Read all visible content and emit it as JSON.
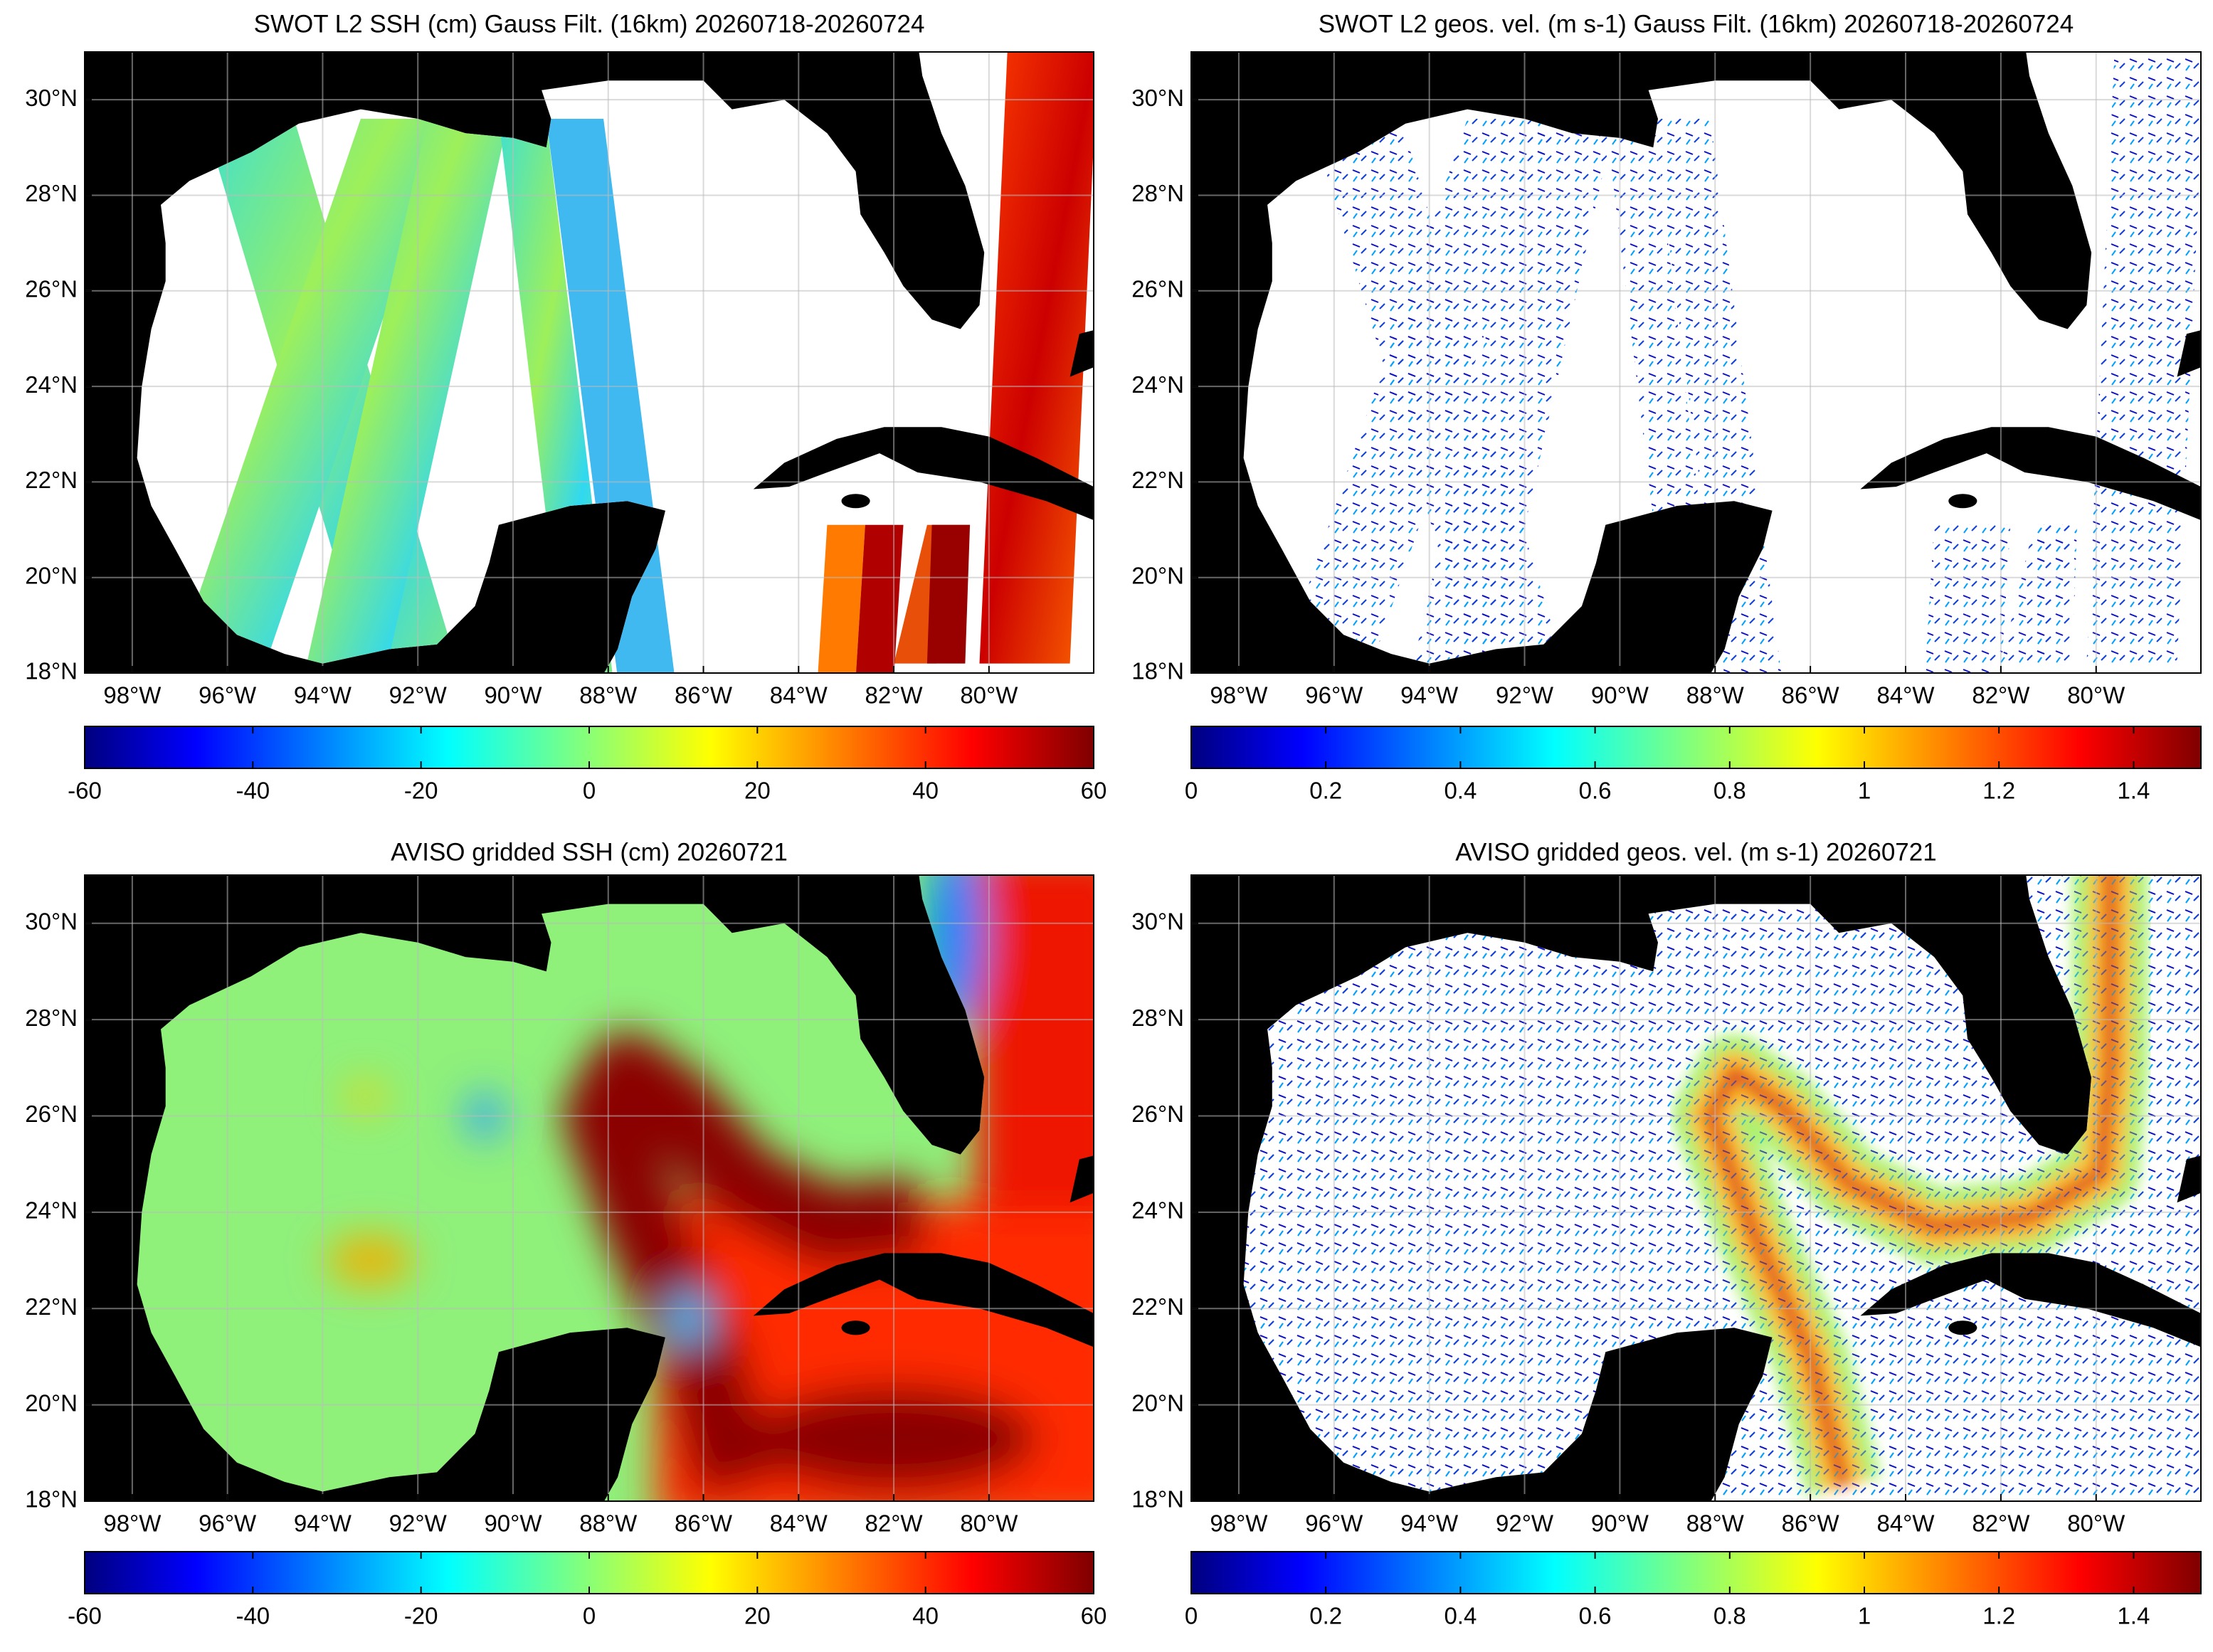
{
  "chart_data": [
    {
      "type": "map",
      "title": "SWOT L2 SSH (cm) Gauss Filt. (16km) 20260718-20260724",
      "xlim": [
        -99,
        -77.8
      ],
      "ylim": [
        18,
        31
      ],
      "xticks": [
        {
          "value": -98,
          "label": "98°W"
        },
        {
          "value": -96,
          "label": "96°W"
        },
        {
          "value": -94,
          "label": "94°W"
        },
        {
          "value": -92,
          "label": "92°W"
        },
        {
          "value": -90,
          "label": "90°W"
        },
        {
          "value": -88,
          "label": "88°W"
        },
        {
          "value": -86,
          "label": "86°W"
        },
        {
          "value": -84,
          "label": "84°W"
        },
        {
          "value": -82,
          "label": "82°W"
        },
        {
          "value": -80,
          "label": "80°W"
        }
      ],
      "yticks": [
        {
          "value": 18,
          "label": "18°N"
        },
        {
          "value": 20,
          "label": "20°N"
        },
        {
          "value": 22,
          "label": "22°N"
        },
        {
          "value": 24,
          "label": "24°N"
        },
        {
          "value": 26,
          "label": "26°N"
        },
        {
          "value": 28,
          "label": "28°N"
        },
        {
          "value": 30,
          "label": "30°N"
        }
      ],
      "grid": true,
      "colormap": "jet",
      "clim": [
        -60,
        60
      ],
      "cticks": [
        -60,
        -40,
        -20,
        0,
        20,
        40,
        60
      ]
    },
    {
      "type": "map",
      "title": "SWOT L2 geos. vel. (m s-1) Gauss Filt. (16km) 20260718-20260724",
      "xlim": [
        -99,
        -77.8
      ],
      "ylim": [
        18,
        31
      ],
      "xticks": [
        {
          "value": -98,
          "label": "98°W"
        },
        {
          "value": -96,
          "label": "96°W"
        },
        {
          "value": -94,
          "label": "94°W"
        },
        {
          "value": -92,
          "label": "92°W"
        },
        {
          "value": -90,
          "label": "90°W"
        },
        {
          "value": -88,
          "label": "88°W"
        },
        {
          "value": -86,
          "label": "86°W"
        },
        {
          "value": -84,
          "label": "84°W"
        },
        {
          "value": -82,
          "label": "82°W"
        },
        {
          "value": -80,
          "label": "80°W"
        }
      ],
      "yticks": [
        {
          "value": 18,
          "label": "18°N"
        },
        {
          "value": 20,
          "label": "20°N"
        },
        {
          "value": 22,
          "label": "22°N"
        },
        {
          "value": 24,
          "label": "24°N"
        },
        {
          "value": 26,
          "label": "26°N"
        },
        {
          "value": 28,
          "label": "28°N"
        },
        {
          "value": 30,
          "label": "30°N"
        }
      ],
      "grid": true,
      "colormap": "jet",
      "clim": [
        0,
        1.5
      ],
      "cticks": [
        0,
        0.2,
        0.4,
        0.6,
        0.8,
        1,
        1.2,
        1.4
      ]
    },
    {
      "type": "map",
      "title": "AVISO gridded SSH (cm) 20260721",
      "xlim": [
        -99,
        -77.8
      ],
      "ylim": [
        18,
        31
      ],
      "xticks": [
        {
          "value": -98,
          "label": "98°W"
        },
        {
          "value": -96,
          "label": "96°W"
        },
        {
          "value": -94,
          "label": "94°W"
        },
        {
          "value": -92,
          "label": "92°W"
        },
        {
          "value": -90,
          "label": "90°W"
        },
        {
          "value": -88,
          "label": "88°W"
        },
        {
          "value": -86,
          "label": "86°W"
        },
        {
          "value": -84,
          "label": "84°W"
        },
        {
          "value": -82,
          "label": "82°W"
        },
        {
          "value": -80,
          "label": "80°W"
        }
      ],
      "yticks": [
        {
          "value": 18,
          "label": "18°N"
        },
        {
          "value": 20,
          "label": "20°N"
        },
        {
          "value": 22,
          "label": "22°N"
        },
        {
          "value": 24,
          "label": "24°N"
        },
        {
          "value": 26,
          "label": "26°N"
        },
        {
          "value": 28,
          "label": "28°N"
        },
        {
          "value": 30,
          "label": "30°N"
        }
      ],
      "grid": true,
      "colormap": "jet",
      "clim": [
        -60,
        60
      ],
      "cticks": [
        -60,
        -40,
        -20,
        0,
        20,
        40,
        60
      ]
    },
    {
      "type": "map",
      "title": "AVISO gridded geos. vel. (m s-1)  20260721",
      "xlim": [
        -99,
        -77.8
      ],
      "ylim": [
        18,
        31
      ],
      "xticks": [
        {
          "value": -98,
          "label": "98°W"
        },
        {
          "value": -96,
          "label": "96°W"
        },
        {
          "value": -94,
          "label": "94°W"
        },
        {
          "value": -92,
          "label": "92°W"
        },
        {
          "value": -90,
          "label": "90°W"
        },
        {
          "value": -88,
          "label": "88°W"
        },
        {
          "value": -86,
          "label": "86°W"
        },
        {
          "value": -84,
          "label": "84°W"
        },
        {
          "value": -82,
          "label": "82°W"
        },
        {
          "value": -80,
          "label": "80°W"
        }
      ],
      "yticks": [
        {
          "value": 18,
          "label": "18°N"
        },
        {
          "value": 20,
          "label": "20°N"
        },
        {
          "value": 22,
          "label": "22°N"
        },
        {
          "value": 24,
          "label": "24°N"
        },
        {
          "value": 26,
          "label": "26°N"
        },
        {
          "value": 28,
          "label": "28°N"
        },
        {
          "value": 30,
          "label": "30°N"
        }
      ],
      "grid": true,
      "colormap": "jet",
      "clim": [
        0,
        1.5
      ],
      "cticks": [
        0,
        0.2,
        0.4,
        0.6,
        0.8,
        1,
        1.2,
        1.4
      ]
    }
  ]
}
